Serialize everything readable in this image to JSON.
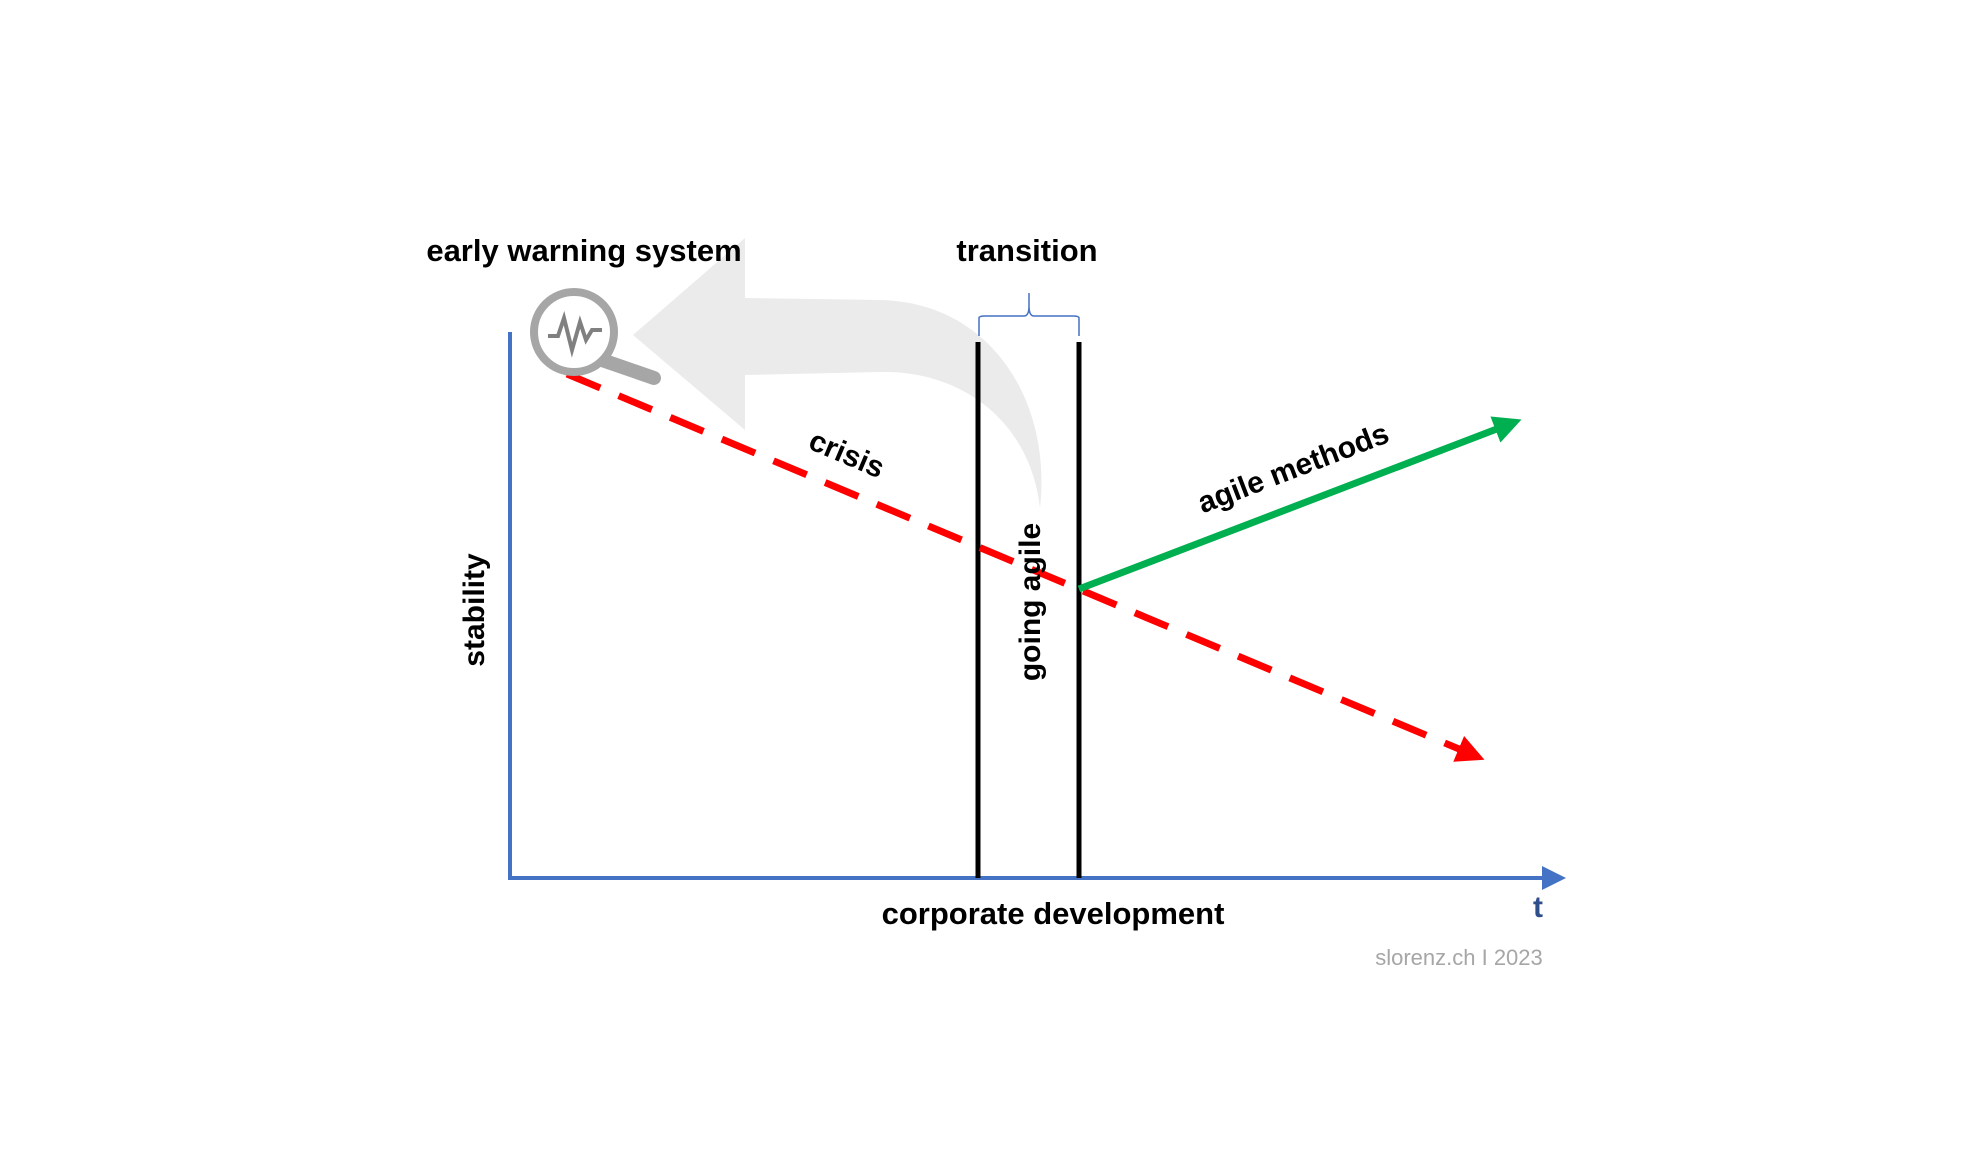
{
  "title": "early warning system",
  "transition_label": "transition",
  "crisis_label": "crisis",
  "agile_methods_label": "agile methods",
  "going_agile_label": "going agile",
  "y_axis_label": "stability",
  "x_axis_label": "corporate development",
  "time_label": "t",
  "credit": "slorenz.ch I 2023"
}
